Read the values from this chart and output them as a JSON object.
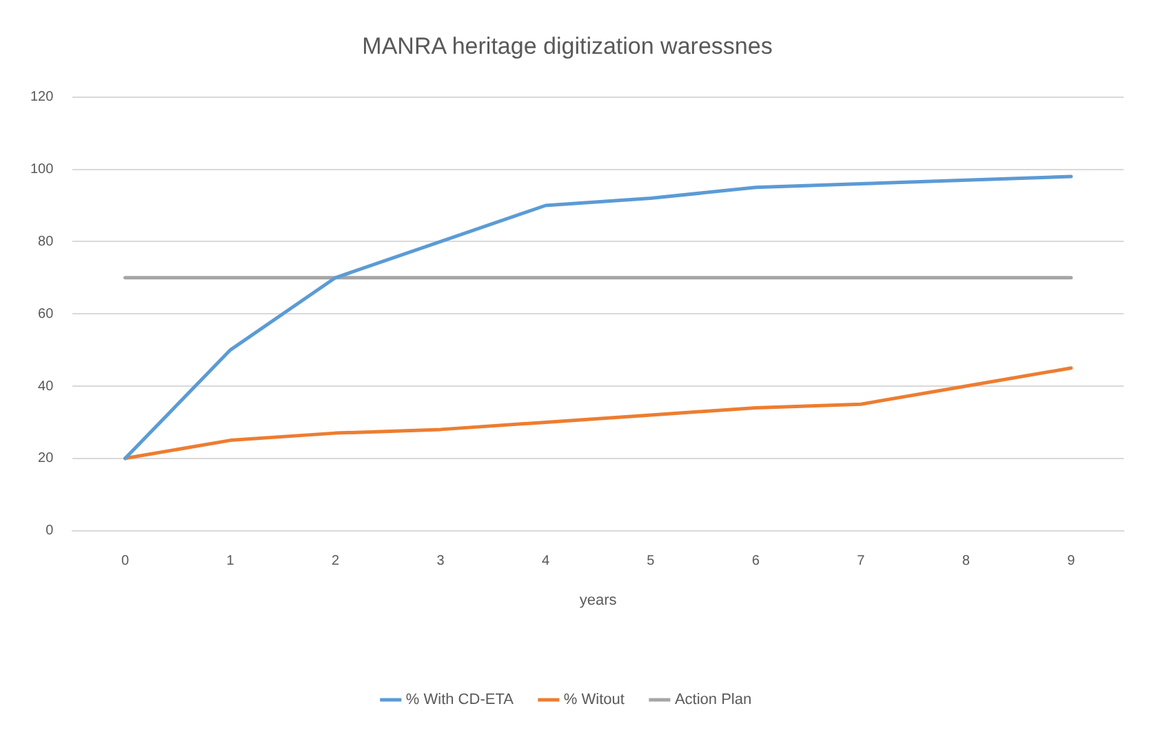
{
  "chart_data": {
    "type": "line",
    "title": "MANRA heritage digitization waressnes",
    "xlabel": "years",
    "categories": [
      "0",
      "1",
      "2",
      "3",
      "4",
      "5",
      "6",
      "7",
      "8",
      "9"
    ],
    "series": [
      {
        "name": "% With CD-ETA",
        "color": "#5b9bd5",
        "values": [
          20,
          50,
          70,
          80,
          90,
          92,
          95,
          96,
          97,
          98
        ]
      },
      {
        "name": "% Witout",
        "color": "#ed7d31",
        "values": [
          20,
          25,
          27,
          28,
          30,
          32,
          34,
          35,
          40,
          45
        ]
      },
      {
        "name": "Action Plan",
        "color": "#a5a5a5",
        "values": [
          70,
          70,
          70,
          70,
          70,
          70,
          70,
          70,
          70,
          70
        ]
      }
    ],
    "ylim": [
      0,
      120
    ],
    "yticks": [
      0,
      20,
      40,
      60,
      80,
      100,
      120
    ],
    "grid": "y",
    "legend": "bottom",
    "marker": "none",
    "line_style": "solid"
  }
}
